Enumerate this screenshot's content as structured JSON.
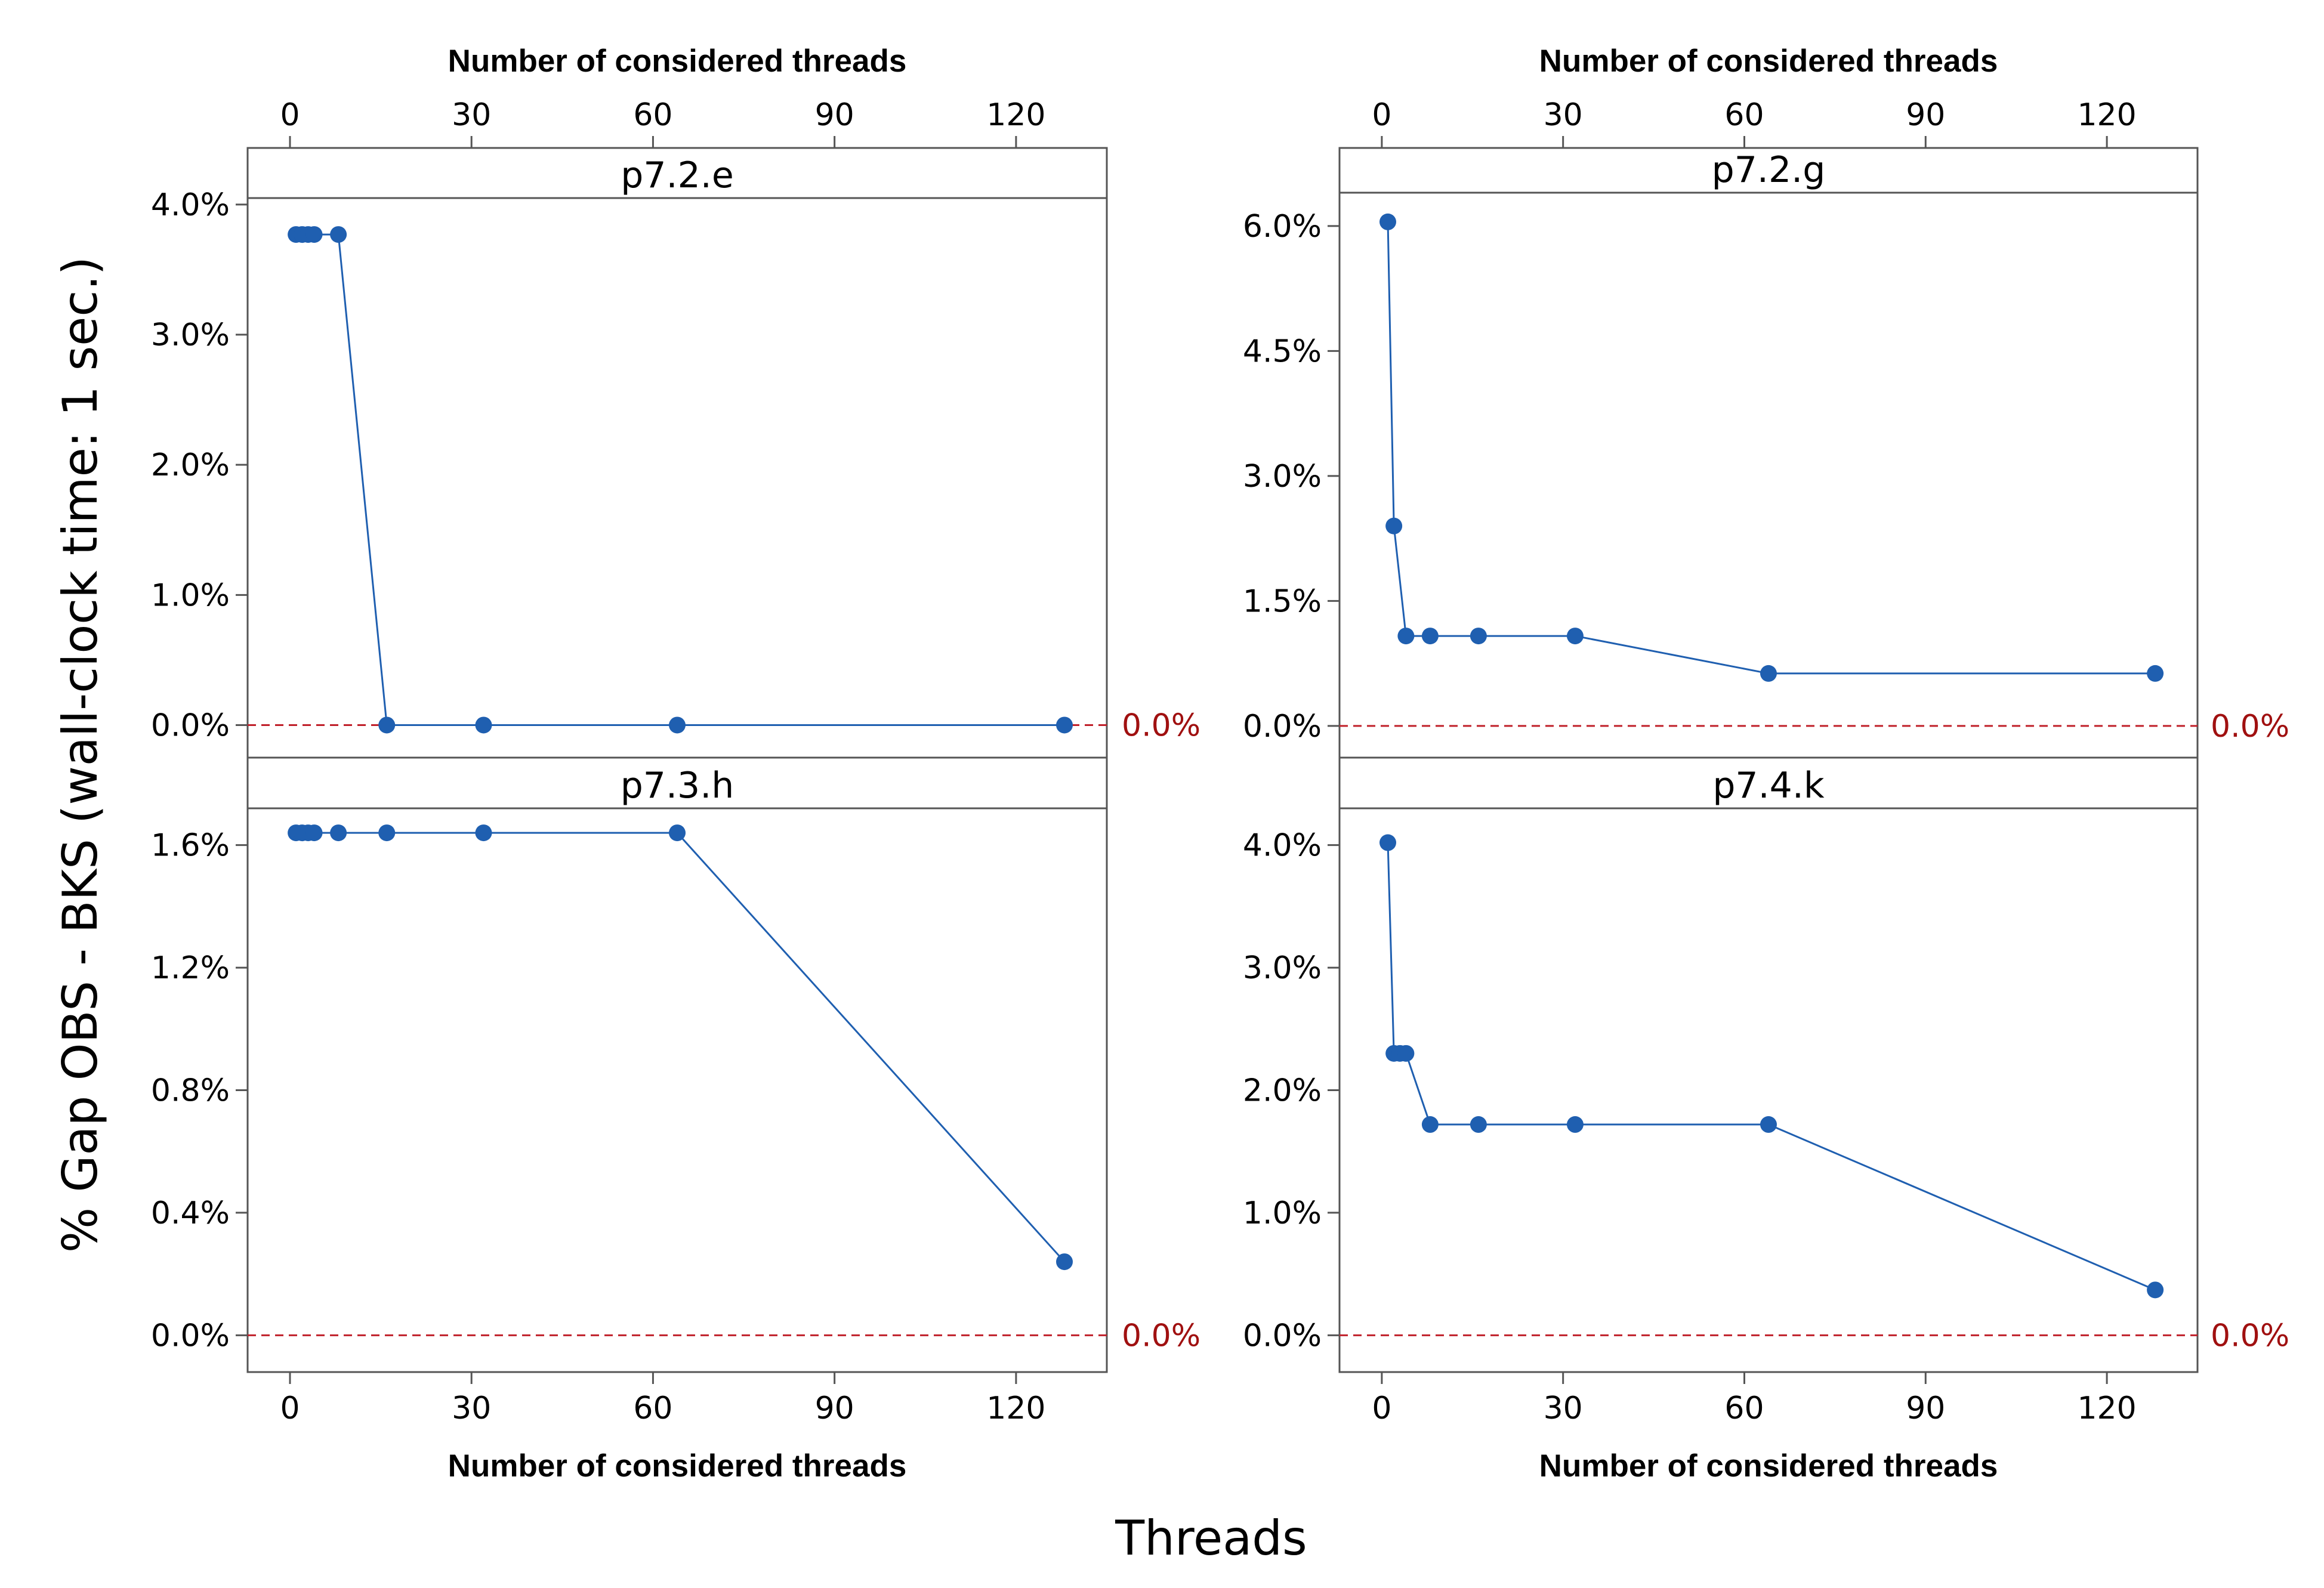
{
  "figure": {
    "ylabel": "% Gap OBS - BKS (wall-clock time: 1 sec.)",
    "xlabel": "Threads"
  },
  "colors": {
    "series": "#1f5fb0",
    "reference_line": "#c0202a",
    "reference_label": "#a01010",
    "frame": "#555555"
  },
  "chart_data": [
    {
      "type": "line",
      "title": "p7.2.e",
      "xlabel_top": "Number of considered threads",
      "xlabel_bottom": "",
      "x": [
        1,
        2,
        3,
        4,
        8,
        16,
        32,
        64,
        128
      ],
      "y": [
        3.77,
        3.77,
        3.77,
        3.77,
        3.77,
        0.0,
        0.0,
        0.0,
        0.0
      ],
      "xlim": [
        -7,
        135
      ],
      "ylim": [
        -0.25,
        4.05
      ],
      "xticks": [
        0,
        30,
        60,
        90,
        120
      ],
      "xtick_labels": [
        "0",
        "30",
        "60",
        "90",
        "120"
      ],
      "yticks": [
        0,
        1,
        2,
        3,
        4
      ],
      "ytick_labels": [
        "0.0%",
        "1.0%",
        "2.0%",
        "3.0%",
        "4.0%"
      ],
      "reference": {
        "value": 0,
        "label": "0.0%"
      },
      "top_axis": true,
      "bottom_axis": false
    },
    {
      "type": "line",
      "title": "p7.2.g",
      "xlabel_top": "Number of considered threads",
      "xlabel_bottom": "",
      "x": [
        1,
        2,
        4,
        8,
        16,
        32,
        64,
        128
      ],
      "y": [
        6.05,
        2.4,
        1.08,
        1.08,
        1.08,
        1.08,
        0.63,
        0.63
      ],
      "xlim": [
        -7,
        135
      ],
      "ylim": [
        -0.38,
        6.4
      ],
      "xticks": [
        0,
        30,
        60,
        90,
        120
      ],
      "xtick_labels": [
        "0",
        "30",
        "60",
        "90",
        "120"
      ],
      "yticks": [
        0,
        1.5,
        3,
        4.5,
        6
      ],
      "ytick_labels": [
        "0.0%",
        "1.5%",
        "3.0%",
        "4.5%",
        "6.0%"
      ],
      "reference": {
        "value": 0,
        "label": "0.0%"
      },
      "top_axis": true,
      "bottom_axis": false
    },
    {
      "type": "line",
      "title": "p7.3.h",
      "xlabel_top": "",
      "xlabel_bottom": "Number of considered threads",
      "x": [
        1,
        2,
        3,
        4,
        8,
        16,
        32,
        64,
        128
      ],
      "y": [
        1.64,
        1.64,
        1.64,
        1.64,
        1.64,
        1.64,
        1.64,
        1.64,
        0.24
      ],
      "xlim": [
        -7,
        135
      ],
      "ylim": [
        -0.12,
        1.72
      ],
      "xticks": [
        0,
        30,
        60,
        90,
        120
      ],
      "xtick_labels": [
        "0",
        "30",
        "60",
        "90",
        "120"
      ],
      "yticks": [
        0,
        0.4,
        0.8,
        1.2,
        1.6
      ],
      "ytick_labels": [
        "0.0%",
        "0.4%",
        "0.8%",
        "1.2%",
        "1.6%"
      ],
      "reference": {
        "value": 0,
        "label": "0.0%"
      },
      "top_axis": false,
      "bottom_axis": true
    },
    {
      "type": "line",
      "title": "p7.4.k",
      "xlabel_top": "",
      "xlabel_bottom": "Number of considered threads",
      "x": [
        1,
        2,
        3,
        4,
        8,
        16,
        32,
        64,
        128
      ],
      "y": [
        4.02,
        2.3,
        2.3,
        2.3,
        1.72,
        1.72,
        1.72,
        1.72,
        0.37
      ],
      "xlim": [
        -7,
        135
      ],
      "ylim": [
        -0.3,
        4.3
      ],
      "xticks": [
        0,
        30,
        60,
        90,
        120
      ],
      "xtick_labels": [
        "0",
        "30",
        "60",
        "90",
        "120"
      ],
      "yticks": [
        0,
        1,
        2,
        3,
        4
      ],
      "ytick_labels": [
        "0.0%",
        "1.0%",
        "2.0%",
        "3.0%",
        "4.0%"
      ],
      "reference": {
        "value": 0,
        "label": "0.0%"
      },
      "top_axis": false,
      "bottom_axis": true
    }
  ]
}
